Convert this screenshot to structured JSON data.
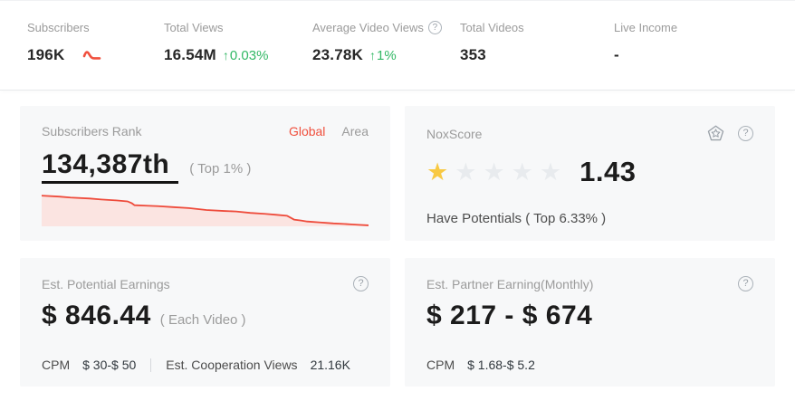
{
  "colors": {
    "accent_red": "#f0503e",
    "accent_green": "#33b865",
    "star_yellow": "#f8c943",
    "star_empty": "#e8ebee",
    "chart_line": "#ee4b3b",
    "chart_fill": "#fbe4e1",
    "card_bg": "#f7f8f9"
  },
  "icons": {
    "help": "?",
    "star": "★"
  },
  "stats": [
    {
      "label": "Subscribers",
      "value": "196K"
    },
    {
      "label": "Total Views",
      "value": "16.54M",
      "delta": "0.03%",
      "arrow": "↑"
    },
    {
      "label": "Average Video Views",
      "value": "23.78K",
      "delta": "1%",
      "arrow": "↑"
    },
    {
      "label": "Total Videos",
      "value": "353"
    },
    {
      "label": "Live Income",
      "value": "-"
    }
  ],
  "cards": {
    "subscribers_rank": {
      "title": "Subscribers Rank",
      "tabs": [
        {
          "label": "Global",
          "active": true
        },
        {
          "label": "Area",
          "active": false
        }
      ],
      "value": "134,387th",
      "note": "( Top 1% )",
      "chart_data": {
        "type": "area",
        "description": "subscribers rank trend, slowly declining red sparkline",
        "x_range": [
          0,
          373
        ],
        "y_range": [
          0,
          34
        ],
        "points": [
          [
            0,
            2
          ],
          [
            20,
            3
          ],
          [
            33,
            4
          ],
          [
            55,
            5
          ],
          [
            68,
            6
          ],
          [
            85,
            7
          ],
          [
            98,
            8
          ],
          [
            103,
            10
          ],
          [
            106,
            12
          ],
          [
            120,
            12.5
          ],
          [
            133,
            13
          ],
          [
            150,
            14
          ],
          [
            168,
            15
          ],
          [
            188,
            17
          ],
          [
            208,
            18
          ],
          [
            222,
            18.5
          ],
          [
            238,
            20
          ],
          [
            255,
            21
          ],
          [
            268,
            22
          ],
          [
            280,
            23
          ],
          [
            284,
            25
          ],
          [
            288,
            27
          ],
          [
            296,
            28
          ],
          [
            303,
            29
          ],
          [
            318,
            30
          ],
          [
            326,
            30.5
          ],
          [
            333,
            31
          ],
          [
            345,
            31.5
          ],
          [
            353,
            32
          ],
          [
            362,
            32.5
          ],
          [
            373,
            33
          ]
        ]
      }
    },
    "nox_score": {
      "title": "NoxScore",
      "stars_total": 5,
      "stars_filled": 1,
      "value": "1.43",
      "note": "Have Potentials ( Top 6.33% )"
    },
    "est_potential_earnings": {
      "title": "Est. Potential Earnings",
      "value": "$ 846.44",
      "note": "( Each Video )",
      "cpm_label": "CPM",
      "cpm_value": "$ 30-$ 50",
      "coop_label": "Est. Cooperation Views",
      "coop_value": "21.16K"
    },
    "est_partner_earning": {
      "title": "Est. Partner Earning(Monthly)",
      "value": "$ 217 - $ 674",
      "cpm_label": "CPM",
      "cpm_value": "$ 1.68-$ 5.2"
    }
  }
}
